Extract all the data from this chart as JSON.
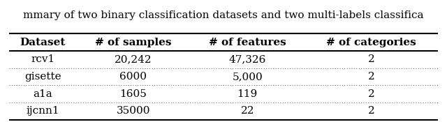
{
  "title_text": "mmary of two binary classification datasets and two multi-labels classifica",
  "columns": [
    "Dataset",
    "# of samples",
    "# of features",
    "# of categories"
  ],
  "rows": [
    [
      "rcv1",
      "20,242",
      "47,326",
      "2"
    ],
    [
      "gisette",
      "6000",
      "5,000",
      "2"
    ],
    [
      "a1a",
      "1605",
      "119",
      "2"
    ],
    [
      "ijcnn1",
      "35000",
      "22",
      "2"
    ]
  ],
  "background_color": "#ffffff",
  "header_fontsize": 11,
  "row_fontsize": 11,
  "title_fontsize": 11,
  "font_family": "DejaVu Serif"
}
